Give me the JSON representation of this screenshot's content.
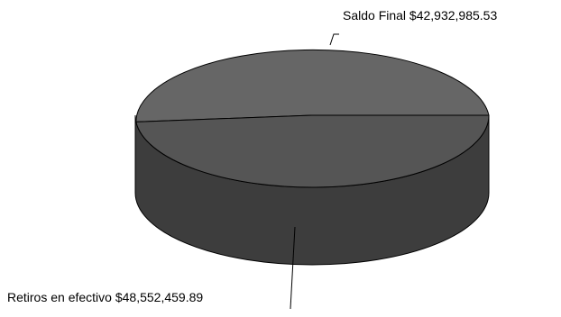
{
  "chart_data": {
    "type": "pie",
    "style": "3d",
    "slices": [
      {
        "label": "Saldo Final",
        "value": 42932985.53,
        "display": "$42,932,985.53",
        "color": "#666666"
      },
      {
        "label": "Retiros en efectivo",
        "value": 48552459.89,
        "display": "$48,552,459.89",
        "color": "#555555"
      }
    ],
    "labels": [
      "Saldo Final $42,932,985.53",
      "Retiros en efectivo $48,552,459.89"
    ],
    "side_color": "#3d3d3d",
    "edge_color": "#000000",
    "legend": "none"
  }
}
